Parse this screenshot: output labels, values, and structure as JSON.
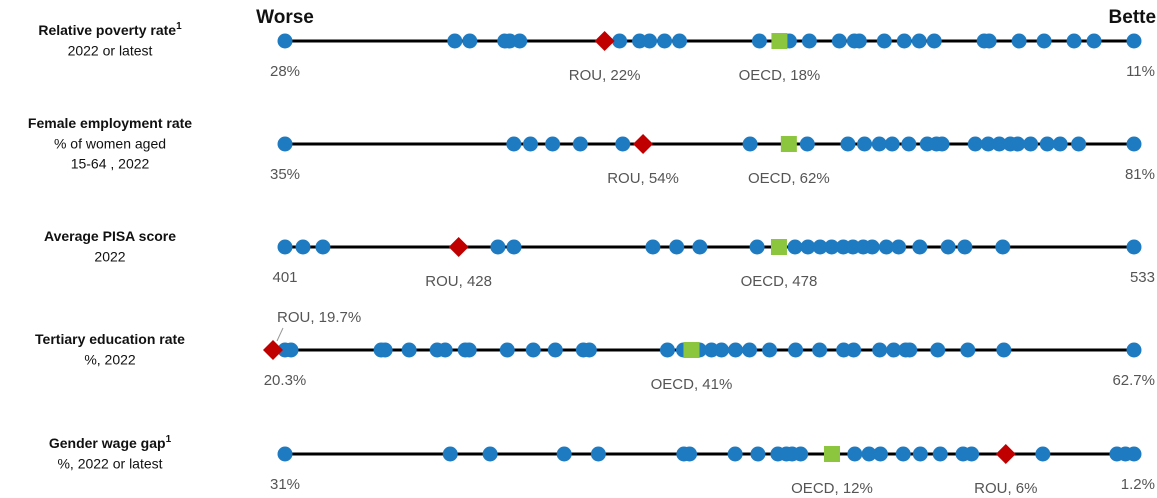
{
  "scale_labels": {
    "worse": "Worse",
    "better": "Better"
  },
  "chart_data": [
    {
      "type": "strip",
      "title": "Relative poverty rate",
      "title_note": "1",
      "subtitle": [
        "2022 or latest"
      ],
      "xlim": [
        28,
        11
      ],
      "xticks": [
        {
          "value": 28,
          "label": "28%"
        },
        {
          "value": 11,
          "label": "11%"
        }
      ],
      "color": "#1f7bc1",
      "values": [
        28,
        24.6,
        24.3,
        23.6,
        23.5,
        23.3,
        21.3,
        20.9,
        20.7,
        20.4,
        20.1,
        18.5,
        17.9,
        17.5,
        16.9,
        16.6,
        16.5,
        16.0,
        15.6,
        15.3,
        15.0,
        14.0,
        13.9,
        13.3,
        12.8,
        12.2,
        11.8,
        11
      ],
      "highlights": [
        {
          "label": "ROU, 22%",
          "value": 21.6,
          "color": "#c00000",
          "marker": "diamond"
        },
        {
          "label": "OECD, 18%",
          "value": 18.1,
          "color": "#8cc63f",
          "marker": "square"
        }
      ]
    },
    {
      "type": "strip",
      "title": "Female employment rate",
      "subtitle": [
        "% of women aged",
        "15-64 , 2022"
      ],
      "xlim": [
        35,
        81
      ],
      "xticks": [
        {
          "value": 35,
          "label": "35%"
        },
        {
          "value": 81,
          "label": "81%"
        }
      ],
      "color": "#1f7bc1",
      "values": [
        35,
        47.4,
        48.3,
        49.5,
        51.0,
        53.3,
        60.2,
        63.3,
        65.5,
        66.4,
        67.2,
        67.9,
        68.8,
        69.8,
        70.3,
        70.6,
        72.4,
        73.1,
        73.7,
        74.3,
        74.7,
        75.4,
        76.3,
        77.0,
        78.0,
        81
      ],
      "highlights": [
        {
          "label": "ROU, 54%",
          "value": 54.4,
          "color": "#c00000",
          "marker": "diamond"
        },
        {
          "label": "OECD, 62%",
          "value": 62.3,
          "color": "#8cc63f",
          "marker": "square"
        }
      ]
    },
    {
      "type": "strip",
      "title": "Average PISA score",
      "subtitle": [
        "2022"
      ],
      "xlim": [
        401,
        533
      ],
      "xticks": [
        401,
        533
      ],
      "color": "#1f7bc1",
      "values": [
        401,
        403.8,
        406.9,
        434.1,
        436.6,
        458.2,
        461.9,
        465.5,
        474.4,
        480.3,
        482.3,
        484.2,
        486.0,
        487.8,
        489.3,
        490.9,
        492.3,
        494.5,
        496.4,
        499.7,
        504.1,
        506.7,
        512.6,
        533
      ],
      "highlights": [
        {
          "label": "ROU, 428",
          "value": 428,
          "color": "#c00000",
          "marker": "diamond"
        },
        {
          "label": "OECD, 478",
          "value": 477.8,
          "color": "#8cc63f",
          "marker": "square"
        }
      ]
    },
    {
      "type": "strip",
      "title": "Tertiary education rate",
      "subtitle": [
        "%, 2022"
      ],
      "xlim": [
        20.3,
        62.7
      ],
      "xticks": [
        {
          "value": 20.3,
          "label": "20.3%"
        },
        {
          "value": 62.7,
          "label": "62.7%"
        }
      ],
      "color": "#1f7bc1",
      "values": [
        20.3,
        20.6,
        25.1,
        25.3,
        26.5,
        27.9,
        28.3,
        29.3,
        29.5,
        31.4,
        32.7,
        33.8,
        35.2,
        35.5,
        39.4,
        40.2,
        41.0,
        41.6,
        42.1,
        42.8,
        43.5,
        44.5,
        45.8,
        47.0,
        48.2,
        48.7,
        50.0,
        50.7,
        51.3,
        51.5,
        52.9,
        54.4,
        56.2,
        62.7
      ],
      "highlights": [
        {
          "label": "ROU, 19.7%",
          "value": 19.7,
          "color": "#c00000",
          "marker": "diamond"
        },
        {
          "label": "OECD, 41%",
          "value": 40.6,
          "color": "#8cc63f",
          "marker": "square"
        }
      ]
    },
    {
      "type": "strip",
      "title": "Gender wage gap",
      "title_note": "1",
      "subtitle": [
        "%, 2022 or latest"
      ],
      "xlim": [
        31,
        1.2
      ],
      "xticks": [
        {
          "value": 31,
          "label": "31%"
        },
        {
          "value": 1.2,
          "label": "1.2%"
        }
      ],
      "color": "#1f7bc1",
      "values": [
        31,
        25.2,
        23.8,
        21.2,
        20.0,
        17.0,
        16.8,
        15.2,
        14.4,
        13.7,
        13.4,
        13.2,
        12.9,
        11.0,
        10.5,
        10.1,
        9.3,
        8.7,
        8.0,
        7.2,
        6.9,
        4.4,
        1.8,
        1.5,
        1.2
      ],
      "highlights": [
        {
          "label": "ROU, 6%",
          "value": 5.7,
          "color": "#c00000",
          "marker": "diamond"
        },
        {
          "label": "OECD, 12%",
          "value": 11.8,
          "color": "#8cc63f",
          "marker": "square"
        }
      ]
    }
  ]
}
